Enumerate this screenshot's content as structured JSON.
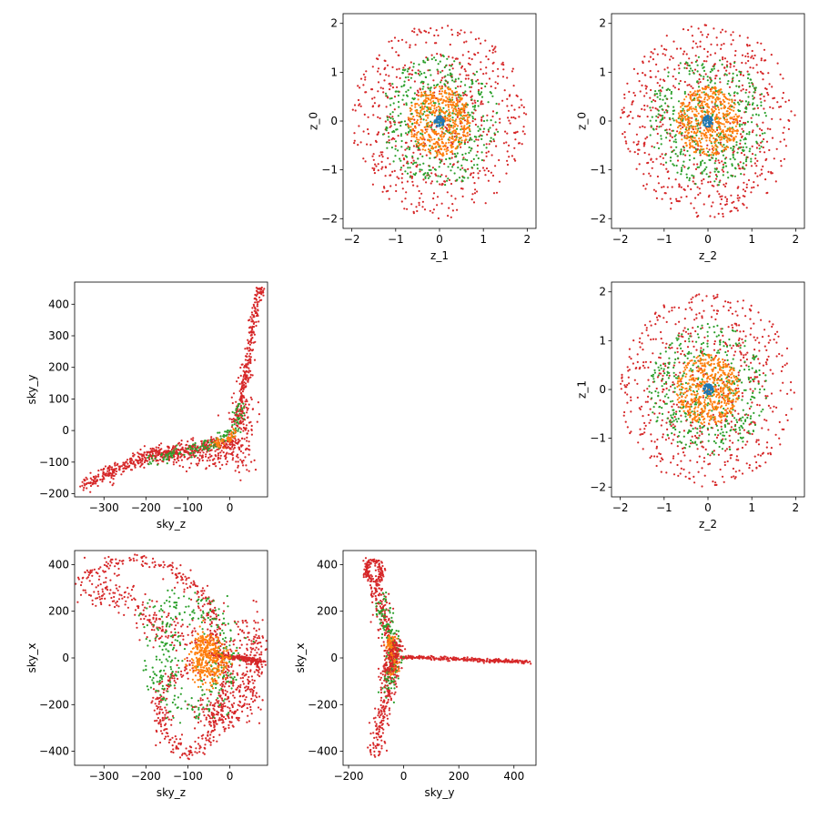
{
  "chart_data": [
    {
      "id": "z1_z0",
      "type": "scatter",
      "xlabel": "z_1",
      "ylabel": "z_0",
      "xlim": [
        -2.2,
        2.2
      ],
      "ylim": [
        -2.2,
        2.2
      ],
      "xticks": [
        -2,
        -1,
        0,
        1,
        2
      ],
      "xtick_labels": [
        "−2",
        "−1",
        "0",
        "1",
        "2"
      ],
      "yticks": [
        -2,
        -1,
        0,
        1,
        2
      ],
      "ytick_labels": [
        "−2",
        "−1",
        "0",
        "1",
        "2"
      ],
      "series": [
        {
          "shape": "disk",
          "radius": 2.0,
          "color": "#d62728",
          "count": 650,
          "seed": 11
        },
        {
          "shape": "disk",
          "radius": 1.35,
          "color": "#2ca02c",
          "count": 450,
          "seed": 12
        },
        {
          "shape": "disk",
          "radius": 0.72,
          "color": "#ff7f0e",
          "count": 500,
          "seed": 13
        },
        {
          "shape": "disk",
          "radius": 0.12,
          "color": "#1f77b4",
          "count": 60,
          "seed": 14
        }
      ]
    },
    {
      "id": "z2_z0",
      "type": "scatter",
      "xlabel": "z_2",
      "ylabel": "z_0",
      "xlim": [
        -2.2,
        2.2
      ],
      "ylim": [
        -2.2,
        2.2
      ],
      "xticks": [
        -2,
        -1,
        0,
        1,
        2
      ],
      "xtick_labels": [
        "−2",
        "−1",
        "0",
        "1",
        "2"
      ],
      "yticks": [
        -2,
        -1,
        0,
        1,
        2
      ],
      "ytick_labels": [
        "−2",
        "−1",
        "0",
        "1",
        "2"
      ],
      "series": [
        {
          "shape": "disk",
          "radius": 2.0,
          "color": "#d62728",
          "count": 650,
          "seed": 21
        },
        {
          "shape": "disk",
          "radius": 1.35,
          "color": "#2ca02c",
          "count": 450,
          "seed": 22
        },
        {
          "shape": "disk",
          "radius": 0.72,
          "color": "#ff7f0e",
          "count": 500,
          "seed": 23
        },
        {
          "shape": "disk",
          "radius": 0.12,
          "color": "#1f77b4",
          "count": 60,
          "seed": 24
        }
      ]
    },
    {
      "id": "skyz_skyy",
      "type": "scatter",
      "xlabel": "sky_z",
      "ylabel": "sky_y",
      "xlim": [
        -370,
        90
      ],
      "ylim": [
        -210,
        470
      ],
      "xticks": [
        -300,
        -200,
        -100,
        0
      ],
      "xtick_labels": [
        "−300",
        "−200",
        "−100",
        "0"
      ],
      "yticks": [
        -200,
        -100,
        0,
        100,
        200,
        300,
        400
      ],
      "ytick_labels": [
        "−200",
        "−100",
        "0",
        "100",
        "200",
        "300",
        "400"
      ],
      "series": [
        {
          "shape": "polyline",
          "color": "#d62728",
          "count": 260,
          "spread": [
            6,
            5
          ],
          "seed": 31,
          "points": [
            [
              15,
              20
            ],
            [
              30,
              100
            ],
            [
              45,
              250
            ],
            [
              60,
              380
            ],
            [
              75,
              455
            ]
          ]
        },
        {
          "shape": "polyline",
          "color": "#d62728",
          "count": 520,
          "spread": [
            8,
            12
          ],
          "seed": 32,
          "points": [
            [
              20,
              -40
            ],
            [
              -20,
              -40
            ],
            [
              -80,
              -55
            ],
            [
              -160,
              -70
            ],
            [
              -230,
              -100
            ],
            [
              -300,
              -145
            ],
            [
              -350,
              -170
            ]
          ]
        },
        {
          "shape": "polyline",
          "color": "#d62728",
          "count": 140,
          "spread": [
            14,
            16
          ],
          "seed": 33,
          "points": [
            [
              20,
              -80
            ],
            [
              -30,
              -90
            ],
            [
              -110,
              -85
            ],
            [
              -190,
              -80
            ]
          ]
        },
        {
          "shape": "polyline",
          "color": "#d62728",
          "count": 130,
          "spread": [
            18,
            45
          ],
          "seed": 34,
          "points": [
            [
              25,
              80
            ],
            [
              25,
              20
            ],
            [
              25,
              -40
            ],
            [
              25,
              -105
            ]
          ]
        },
        {
          "shape": "polyline",
          "color": "#2ca02c",
          "count": 150,
          "spread": [
            8,
            10
          ],
          "seed": 35,
          "points": [
            [
              20,
              80
            ],
            [
              20,
              20
            ],
            [
              -40,
              -45
            ],
            [
              -120,
              -70
            ],
            [
              -200,
              -100
            ]
          ]
        },
        {
          "shape": "polyline",
          "color": "#ff7f0e",
          "count": 50,
          "spread": [
            6,
            8
          ],
          "seed": 36,
          "points": [
            [
              15,
              -5
            ],
            [
              -10,
              -35
            ],
            [
              -40,
              -45
            ]
          ]
        }
      ]
    },
    {
      "id": "z2_z1",
      "type": "scatter",
      "xlabel": "z_2",
      "ylabel": "z_1",
      "xlim": [
        -2.2,
        2.2
      ],
      "ylim": [
        -2.2,
        2.2
      ],
      "xticks": [
        -2,
        -1,
        0,
        1,
        2
      ],
      "xtick_labels": [
        "−2",
        "−1",
        "0",
        "1",
        "2"
      ],
      "yticks": [
        -2,
        -1,
        0,
        1,
        2
      ],
      "ytick_labels": [
        "−2",
        "−1",
        "0",
        "1",
        "2"
      ],
      "series": [
        {
          "shape": "disk",
          "radius": 2.0,
          "color": "#d62728",
          "count": 650,
          "seed": 41
        },
        {
          "shape": "disk",
          "radius": 1.35,
          "color": "#2ca02c",
          "count": 450,
          "seed": 42
        },
        {
          "shape": "disk",
          "radius": 0.72,
          "color": "#ff7f0e",
          "count": 500,
          "seed": 43
        },
        {
          "shape": "disk",
          "radius": 0.12,
          "color": "#1f77b4",
          "count": 60,
          "seed": 44
        }
      ]
    },
    {
      "id": "skyz_skyx",
      "type": "scatter",
      "xlabel": "sky_z",
      "ylabel": "sky_x",
      "xlim": [
        -370,
        90
      ],
      "ylim": [
        -460,
        460
      ],
      "xticks": [
        -300,
        -200,
        -100,
        0
      ],
      "xtick_labels": [
        "−300",
        "−200",
        "−100",
        "0"
      ],
      "yticks": [
        -400,
        -200,
        0,
        200,
        400
      ],
      "ytick_labels": [
        "−400",
        "−200",
        "0",
        "200",
        "400"
      ],
      "series": [
        {
          "shape": "polyline",
          "color": "#d62728",
          "count": 560,
          "spread": [
            12,
            14
          ],
          "seed": 51,
          "points": [
            [
              -350,
              340
            ],
            [
              -300,
              390
            ],
            [
              -230,
              420
            ],
            [
              -150,
              390
            ],
            [
              -80,
              300
            ],
            [
              -40,
              180
            ],
            [
              -20,
              40
            ],
            [
              -10,
              -80
            ],
            [
              -20,
              -200
            ],
            [
              -40,
              -300
            ],
            [
              -70,
              -410
            ],
            [
              -120,
              -400
            ],
            [
              -160,
              -300
            ],
            [
              -170,
              -150
            ],
            [
              -130,
              -70
            ],
            [
              -80,
              -30
            ]
          ]
        },
        {
          "shape": "polyline",
          "color": "#d62728",
          "count": 330,
          "spread": [
            22,
            40
          ],
          "seed": 52,
          "points": [
            [
              40,
              150
            ],
            [
              55,
              60
            ],
            [
              60,
              -30
            ],
            [
              40,
              -120
            ],
            [
              25,
              -200
            ],
            [
              0,
              -260
            ],
            [
              -40,
              -240
            ],
            [
              -80,
              -180
            ]
          ]
        },
        {
          "shape": "polyline",
          "color": "#d62728",
          "count": 220,
          "spread": [
            6,
            5
          ],
          "seed": 53,
          "points": [
            [
              -40,
              15
            ],
            [
              0,
              5
            ],
            [
              40,
              -5
            ],
            [
              75,
              -15
            ]
          ]
        },
        {
          "shape": "polyline",
          "color": "#d62728",
          "count": 220,
          "spread": [
            30,
            35
          ],
          "seed": 54,
          "points": [
            [
              -330,
              330
            ],
            [
              -260,
              250
            ],
            [
              -190,
              170
            ],
            [
              -130,
              110
            ],
            [
              -80,
              60
            ]
          ]
        },
        {
          "shape": "polyline",
          "color": "#2ca02c",
          "count": 340,
          "spread": [
            26,
            30
          ],
          "seed": 55,
          "points": [
            [
              -170,
              220
            ],
            [
              -110,
              240
            ],
            [
              -40,
              200
            ],
            [
              -10,
              100
            ],
            [
              -10,
              -20
            ],
            [
              -30,
              -140
            ],
            [
              -70,
              -230
            ],
            [
              -140,
              -200
            ],
            [
              -170,
              -100
            ],
            [
              -140,
              40
            ],
            [
              -170,
              200
            ]
          ]
        },
        {
          "shape": "polyline",
          "color": "#ff7f0e",
          "count": 380,
          "spread": [
            14,
            30
          ],
          "seed": 56,
          "points": [
            [
              -60,
              80
            ],
            [
              -40,
              40
            ],
            [
              -25,
              -10
            ],
            [
              -30,
              -60
            ],
            [
              -50,
              -90
            ],
            [
              -70,
              -50
            ],
            [
              -65,
              20
            ],
            [
              -60,
              80
            ]
          ]
        }
      ]
    },
    {
      "id": "skyy_skyx",
      "type": "scatter",
      "xlabel": "sky_y",
      "ylabel": "sky_x",
      "xlim": [
        -220,
        480
      ],
      "ylim": [
        -460,
        460
      ],
      "xticks": [
        -200,
        0,
        200,
        400
      ],
      "xtick_labels": [
        "−200",
        "0",
        "200",
        "400"
      ],
      "yticks": [
        -400,
        -200,
        0,
        200,
        400
      ],
      "ytick_labels": [
        "−400",
        "−200",
        "0",
        "200",
        "400"
      ],
      "series": [
        {
          "shape": "polyline",
          "color": "#d62728",
          "count": 140,
          "spread": [
            8,
            8
          ],
          "seed": 61,
          "points": [
            [
              -120,
              330
            ],
            [
              -140,
              380
            ],
            [
              -120,
              415
            ],
            [
              -90,
              410
            ],
            [
              -80,
              370
            ],
            [
              -100,
              320
            ]
          ]
        },
        {
          "shape": "polyline",
          "color": "#d62728",
          "count": 380,
          "spread": [
            14,
            18
          ],
          "seed": 62,
          "points": [
            [
              -100,
              320
            ],
            [
              -80,
              200
            ],
            [
              -55,
              80
            ],
            [
              -30,
              10
            ],
            [
              -45,
              -100
            ],
            [
              -70,
              -200
            ],
            [
              -90,
              -300
            ],
            [
              -100,
              -420
            ]
          ]
        },
        {
          "shape": "polyline",
          "color": "#d62728",
          "count": 280,
          "spread": [
            5,
            4
          ],
          "seed": 63,
          "points": [
            [
              -10,
              5
            ],
            [
              100,
              0
            ],
            [
              200,
              -5
            ],
            [
              300,
              -10
            ],
            [
              400,
              -15
            ],
            [
              460,
              -20
            ]
          ]
        },
        {
          "shape": "polyline",
          "color": "#2ca02c",
          "count": 170,
          "spread": [
            14,
            28
          ],
          "seed": 64,
          "points": [
            [
              -90,
              240
            ],
            [
              -65,
              160
            ],
            [
              -45,
              80
            ],
            [
              -35,
              20
            ],
            [
              -45,
              -60
            ],
            [
              -60,
              -140
            ]
          ]
        },
        {
          "shape": "polyline",
          "color": "#ff7f0e",
          "count": 110,
          "spread": [
            10,
            20
          ],
          "seed": 65,
          "points": [
            [
              -50,
              80
            ],
            [
              -35,
              20
            ],
            [
              -40,
              -60
            ]
          ]
        },
        {
          "shape": "polyline",
          "color": "#d62728",
          "count": 130,
          "spread": [
            12,
            18
          ],
          "seed": 66,
          "points": [
            [
              -70,
              -80
            ],
            [
              -50,
              -20
            ],
            [
              -30,
              20
            ],
            [
              -20,
              60
            ]
          ]
        }
      ]
    }
  ]
}
